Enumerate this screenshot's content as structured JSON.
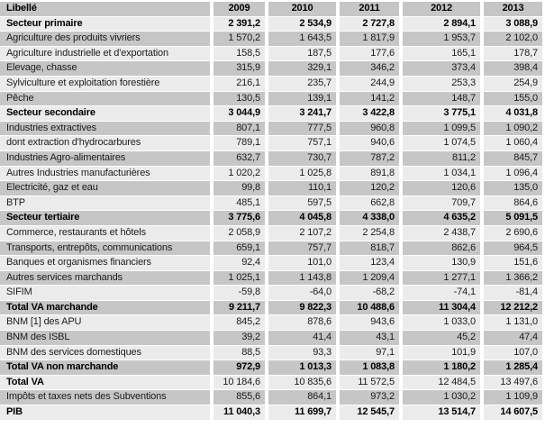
{
  "document": {
    "type": "national-accounts-table",
    "unit_note": ""
  },
  "colors": {
    "stripe_dark": "#c6c6c6",
    "stripe_light": "#ebebeb",
    "text": "#1c1c1c",
    "separator": "#ffffff"
  },
  "table": {
    "header": {
      "label": "Libellé",
      "years": [
        "2009",
        "2010",
        "2011",
        "2012",
        "2013"
      ]
    },
    "rows": [
      {
        "label": "Secteur primaire",
        "style": "section",
        "values": [
          "2 391,2",
          "2 534,9",
          "2 727,8",
          "2 894,1",
          "3 088,9"
        ]
      },
      {
        "label": "Agriculture des produits vivriers",
        "style": "normal",
        "values": [
          "1 570,2",
          "1 643,5",
          "1 817,9",
          "1 953,7",
          "2 102,0"
        ]
      },
      {
        "label": "Agriculture industrielle et d'exportation",
        "style": "normal",
        "values": [
          "158,5",
          "187,5",
          "177,6",
          "165,1",
          "178,7"
        ]
      },
      {
        "label": "Elevage, chasse",
        "style": "normal",
        "values": [
          "315,9",
          "329,1",
          "346,2",
          "373,4",
          "398,4"
        ]
      },
      {
        "label": "Sylviculture et exploitation forestière",
        "style": "normal",
        "values": [
          "216,1",
          "235,7",
          "244,9",
          "253,3",
          "254,9"
        ]
      },
      {
        "label": "Pêche",
        "style": "normal",
        "values": [
          "130,5",
          "139,1",
          "141,2",
          "148,7",
          "155,0"
        ]
      },
      {
        "label": "Secteur secondaire",
        "style": "section",
        "values": [
          "3 044,9",
          "3 241,7",
          "3 422,8",
          "3 775,1",
          "4 031,8"
        ]
      },
      {
        "label": "Industries extractives",
        "style": "normal",
        "values": [
          "807,1",
          "777,5",
          "960,8",
          "1 099,5",
          "1 090,2"
        ]
      },
      {
        "label": "dont extraction d'hydrocarbures",
        "style": "normal",
        "values": [
          "789,1",
          "757,1",
          "940,6",
          "1 074,5",
          "1 060,4"
        ]
      },
      {
        "label": "Industries Agro-alimentaires",
        "style": "normal",
        "values": [
          "632,7",
          "730,7",
          "787,2",
          "811,2",
          "845,7"
        ]
      },
      {
        "label": "Autres Industries manufacturières",
        "style": "normal",
        "values": [
          "1 020,2",
          "1 025,8",
          "891,8",
          "1 034,1",
          "1 096,4"
        ]
      },
      {
        "label": "Electricité, gaz et eau",
        "style": "normal",
        "values": [
          "99,8",
          "110,1",
          "120,2",
          "120,6",
          "135,0"
        ]
      },
      {
        "label": "BTP",
        "style": "normal",
        "values": [
          "485,1",
          "597,5",
          "662,8",
          "709,7",
          "864,6"
        ]
      },
      {
        "label": "Secteur tertiaire",
        "style": "section",
        "values": [
          "3 775,6",
          "4 045,8",
          "4 338,0",
          "4 635,2",
          "5 091,5"
        ]
      },
      {
        "label": "Commerce, restaurants et hôtels",
        "style": "normal",
        "values": [
          "2 058,9",
          "2 107,2",
          "2 254,8",
          "2 438,7",
          "2 690,6"
        ]
      },
      {
        "label": "Transports, entrepôts, communications",
        "style": "normal",
        "values": [
          "659,1",
          "757,7",
          "818,7",
          "862,6",
          "964,5"
        ]
      },
      {
        "label": "Banques et organismes financiers",
        "style": "normal",
        "values": [
          "92,4",
          "101,0",
          "123,4",
          "130,9",
          "151,6"
        ]
      },
      {
        "label": "Autres services marchands",
        "style": "normal",
        "values": [
          "1 025,1",
          "1 143,8",
          "1 209,4",
          "1 277,1",
          "1 366,2"
        ]
      },
      {
        "label": "SIFIM",
        "style": "normal",
        "values": [
          "-59,8",
          "-64,0",
          "-68,2",
          "-74,1",
          "-81,4"
        ]
      },
      {
        "label": "Total VA marchande",
        "style": "section",
        "values": [
          "9 211,7",
          "9 822,3",
          "10 488,6",
          "11 304,4",
          "12 212,2"
        ]
      },
      {
        "label": "BNM [1] des APU",
        "style": "normal",
        "values": [
          "845,2",
          "878,6",
          "943,6",
          "1 033,0",
          "1 131,0"
        ]
      },
      {
        "label": "BNM des ISBL",
        "style": "normal",
        "values": [
          "39,2",
          "41,4",
          "43,1",
          "45,2",
          "47,4"
        ]
      },
      {
        "label": "BNM des services domestiques",
        "style": "normal",
        "values": [
          "88,5",
          "93,3",
          "97,1",
          "101,9",
          "107,0"
        ]
      },
      {
        "label": "Total VA non marchande",
        "style": "section",
        "values": [
          "972,9",
          "1 013,3",
          "1 083,8",
          "1 180,2",
          "1 285,4"
        ]
      },
      {
        "label": "Total VA",
        "style": "total-label",
        "values": [
          "10 184,6",
          "10 835,6",
          "11 572,5",
          "12 484,5",
          "13 497,6"
        ]
      },
      {
        "label": "Impôts et taxes nets des Subventions",
        "style": "normal",
        "values": [
          "855,6",
          "864,1",
          "973,2",
          "1 030,2",
          "1 109,9"
        ]
      },
      {
        "label": "PIB",
        "style": "section",
        "values": [
          "11 040,3",
          "11 699,7",
          "12 545,7",
          "13 514,7",
          "14 607,5"
        ]
      }
    ]
  }
}
